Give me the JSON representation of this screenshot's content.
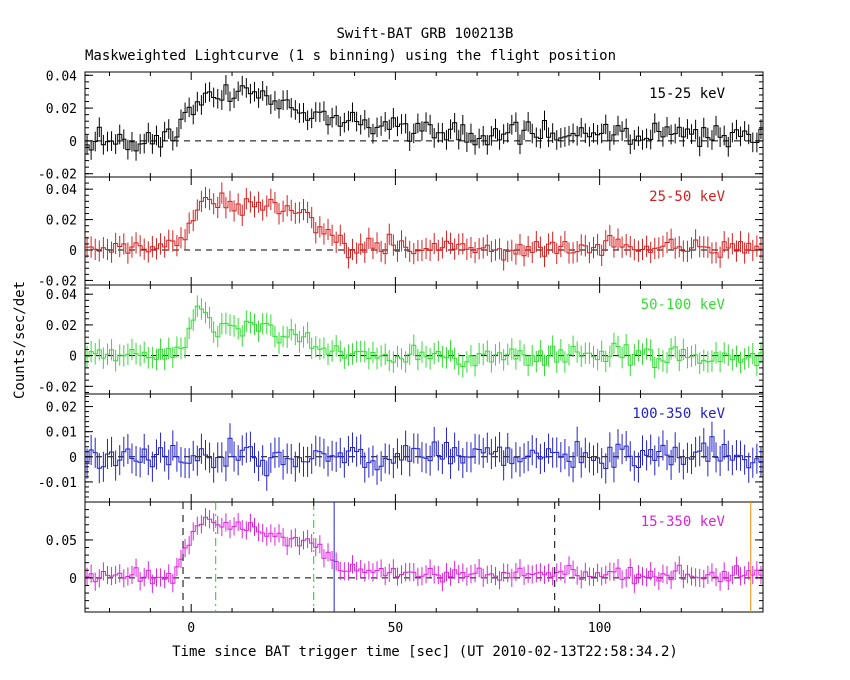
{
  "figure": {
    "title": "Swift-BAT GRB 100213B",
    "subtitle": "Maskweighted Lightcurve (1 s binning) using the flight position",
    "ylabel": "Counts/sec/det",
    "xlabel": "Time since BAT trigger time [sec] (UT 2010-02-13T22:58:34.2)"
  },
  "chart_data": {
    "type": "line",
    "title": "Swift-BAT GRB 100213B",
    "subtitle": "Maskweighted Lightcurve (1 s binning) using the flight position",
    "xlabel": "Time since BAT trigger time [sec] (UT 2010-02-13T22:58:34.2)",
    "ylabel": "Counts/sec/det",
    "xlim": [
      -26,
      140
    ],
    "x_ticks": [
      0,
      50,
      100
    ],
    "bin_width_s": 1,
    "panels": [
      {
        "name": "15-25 keV",
        "color": "#000000",
        "ylim": [
          -0.022,
          0.042
        ],
        "y_ticks": [
          -0.02,
          0,
          0.02,
          0.04
        ],
        "y_tick_labels": [
          "-0.02",
          "0",
          "0.02",
          "0.04"
        ],
        "error": 0.006,
        "profile": [
          [
            -26,
            0.0
          ],
          [
            -5,
            0.002
          ],
          [
            -2,
            0.012
          ],
          [
            0,
            0.022
          ],
          [
            8,
            0.03
          ],
          [
            18,
            0.026
          ],
          [
            30,
            0.015
          ],
          [
            40,
            0.009
          ],
          [
            60,
            0.005
          ],
          [
            80,
            0.004
          ],
          [
            140,
            0.003
          ]
        ],
        "noise": 0.006
      },
      {
        "name": "25-50 keV",
        "color": "#d62020",
        "ylim": [
          -0.023,
          0.048
        ],
        "y_ticks": [
          -0.02,
          0,
          0.02,
          0.04
        ],
        "y_tick_labels": [
          "-0.02",
          "0",
          "0.02",
          "0.04"
        ],
        "error": 0.007,
        "profile": [
          [
            -26,
            0.0
          ],
          [
            -4,
            0.002
          ],
          [
            -1,
            0.012
          ],
          [
            2,
            0.035
          ],
          [
            10,
            0.03
          ],
          [
            20,
            0.028
          ],
          [
            28,
            0.025
          ],
          [
            33,
            0.01
          ],
          [
            40,
            0.002
          ],
          [
            140,
            0.001
          ]
        ],
        "noise": 0.006
      },
      {
        "name": "50-100 keV",
        "color": "#33dd33",
        "ylim": [
          -0.025,
          0.046
        ],
        "y_ticks": [
          -0.02,
          0,
          0.02,
          0.04
        ],
        "y_tick_labels": [
          "-0.02",
          "0",
          "0.02",
          "0.04"
        ],
        "error": 0.007,
        "profile": [
          [
            -26,
            0.0
          ],
          [
            -4,
            0.001
          ],
          [
            -1,
            0.01
          ],
          [
            1,
            0.03
          ],
          [
            6,
            0.018
          ],
          [
            15,
            0.018
          ],
          [
            22,
            0.012
          ],
          [
            30,
            0.008
          ],
          [
            36,
            0.0
          ],
          [
            140,
            0.0
          ]
        ],
        "noise": 0.006
      },
      {
        "name": "100-350 keV",
        "color": "#2222cc",
        "ylim": [
          -0.018,
          0.025
        ],
        "y_ticks": [
          -0.01,
          0,
          0.01,
          0.02
        ],
        "y_tick_labels": [
          "-0.01",
          "0",
          "0.01",
          "0.02"
        ],
        "error": 0.006,
        "profile": [
          [
            -26,
            0.0
          ],
          [
            140,
            0.0
          ]
        ],
        "noise": 0.005
      },
      {
        "name": "15-350 keV",
        "color": "#dd22dd",
        "ylim": [
          -0.045,
          0.1
        ],
        "y_ticks": [
          0,
          0.05
        ],
        "y_tick_labels": [
          "0",
          "0.05"
        ],
        "error": 0.012,
        "profile": [
          [
            -26,
            0.0
          ],
          [
            -4,
            0.003
          ],
          [
            -1,
            0.04
          ],
          [
            2,
            0.075
          ],
          [
            10,
            0.07
          ],
          [
            20,
            0.058
          ],
          [
            28,
            0.05
          ],
          [
            34,
            0.025
          ],
          [
            40,
            0.006
          ],
          [
            140,
            0.004
          ]
        ],
        "noise": 0.008,
        "markers": [
          {
            "x": -2,
            "color": "#000000",
            "style": "dashed"
          },
          {
            "x": 89,
            "color": "#000000",
            "style": "dashed"
          },
          {
            "x": 6,
            "color": "#22cc22",
            "style": "dashdot"
          },
          {
            "x": 30,
            "color": "#22cc22",
            "style": "dashdot"
          },
          {
            "x": 35,
            "color": "#2222cc",
            "style": "solid"
          },
          {
            "x": 137,
            "color": "#ee8800",
            "style": "solid"
          }
        ]
      }
    ]
  }
}
